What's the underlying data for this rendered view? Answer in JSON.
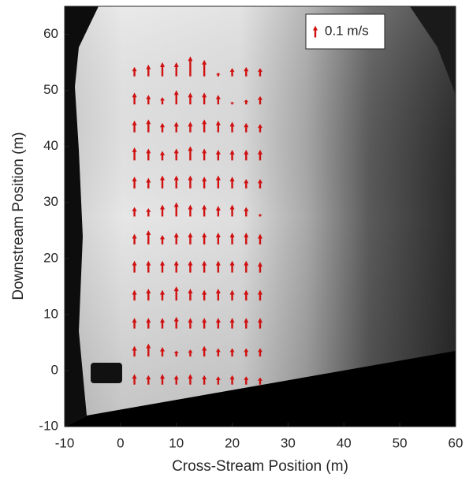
{
  "chart_data": {
    "type": "quiver",
    "xlabel": "Cross-Stream Position (m)",
    "ylabel": "Downstream Position (m)",
    "xlim": [
      -10,
      60
    ],
    "ylim": [
      -10,
      65
    ],
    "xticks": [
      -10,
      0,
      10,
      20,
      30,
      40,
      50,
      60
    ],
    "yticks": [
      -10,
      0,
      10,
      20,
      30,
      40,
      50,
      60
    ],
    "color": "#d01010",
    "x": [
      2.5,
      5,
      7.5,
      10,
      12.5,
      15,
      17.5,
      20,
      22.5,
      25
    ],
    "y": [
      -2.5,
      2.5,
      7.5,
      12.5,
      17.5,
      22.5,
      27.5,
      32.5,
      37.5,
      42.5,
      47.5,
      52.5
    ],
    "values": [
      [
        0.09,
        0.08,
        0.09,
        0.08,
        0.09,
        0.08,
        0.07,
        0.08,
        0.07,
        0.06
      ],
      [
        0.09,
        0.11,
        0.08,
        0.05,
        0.06,
        0.09,
        0.07,
        0.07,
        0.07,
        0.07
      ],
      [
        0.09,
        0.09,
        0.09,
        0.1,
        0.09,
        0.09,
        0.09,
        0.09,
        0.09,
        0.09
      ],
      [
        0.09,
        0.1,
        0.09,
        0.12,
        0.1,
        0.09,
        0.1,
        0.09,
        0.09,
        0.09
      ],
      [
        0.1,
        0.1,
        0.1,
        0.1,
        0.1,
        0.1,
        0.1,
        0.1,
        0.1,
        0.09
      ],
      [
        0.09,
        0.12,
        0.08,
        0.1,
        0.1,
        0.1,
        0.1,
        0.1,
        0.1,
        0.09
      ],
      [
        0.08,
        0.07,
        0.1,
        0.12,
        0.1,
        0.1,
        0.09,
        0.1,
        0.08,
        0.02
      ],
      [
        0.1,
        0.09,
        0.11,
        0.11,
        0.11,
        0.1,
        0.11,
        0.1,
        0.08,
        0.08
      ],
      [
        0.11,
        0.1,
        0.08,
        0.1,
        0.12,
        0.1,
        0.09,
        0.09,
        0.09,
        0.09
      ],
      [
        0.1,
        0.11,
        0.08,
        0.09,
        0.09,
        0.11,
        0.1,
        0.09,
        0.08,
        0.07
      ],
      [
        0.1,
        0.08,
        0.06,
        0.12,
        0.1,
        0.1,
        0.08,
        0.02,
        0.04,
        0.07
      ],
      [
        0.08,
        0.1,
        0.12,
        0.12,
        0.17,
        0.14,
        0.03,
        0.07,
        0.08,
        0.07
      ]
    ],
    "legend": {
      "label": "0.1 m/s",
      "value": 0.1
    }
  }
}
